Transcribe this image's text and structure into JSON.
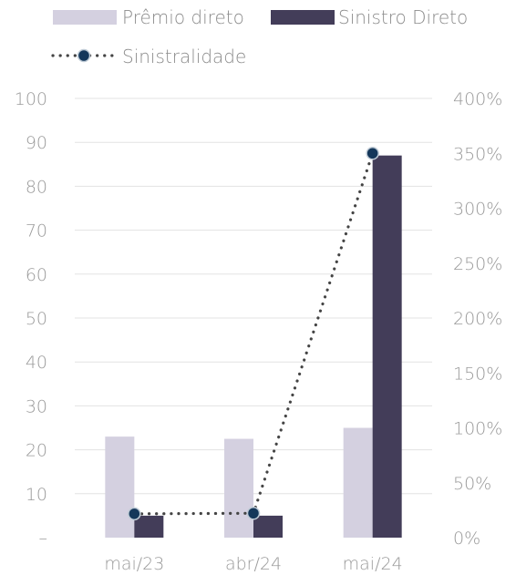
{
  "chart_data": {
    "type": "bar",
    "categories": [
      "mai/23",
      "abr/24",
      "mai/24"
    ],
    "series": [
      {
        "name": "Prêmio direto",
        "kind": "bar",
        "axis": "left",
        "color": "#d4d0e0",
        "values": [
          23,
          22.5,
          25
        ]
      },
      {
        "name": "Sinistro Direto",
        "kind": "bar",
        "axis": "left",
        "color": "#433d59",
        "values": [
          5,
          5,
          87
        ]
      },
      {
        "name": "Sinistralidade",
        "kind": "line",
        "style": "dotted",
        "axis": "right",
        "color": "#444444",
        "marker_color": "#14375a",
        "values": [
          21.7,
          22.2,
          350
        ]
      }
    ],
    "y_left": {
      "ylim": [
        0,
        100
      ],
      "ticks": [
        "–",
        "10",
        "20",
        "30",
        "40",
        "50",
        "60",
        "70",
        "80",
        "90",
        "100"
      ]
    },
    "y_right": {
      "ylim": [
        0,
        400
      ],
      "ticks": [
        "0%",
        "50%",
        "100%",
        "150%",
        "200%",
        "250%",
        "300%",
        "350%",
        "400%"
      ]
    },
    "grid": true,
    "legend_position": "top-left"
  }
}
